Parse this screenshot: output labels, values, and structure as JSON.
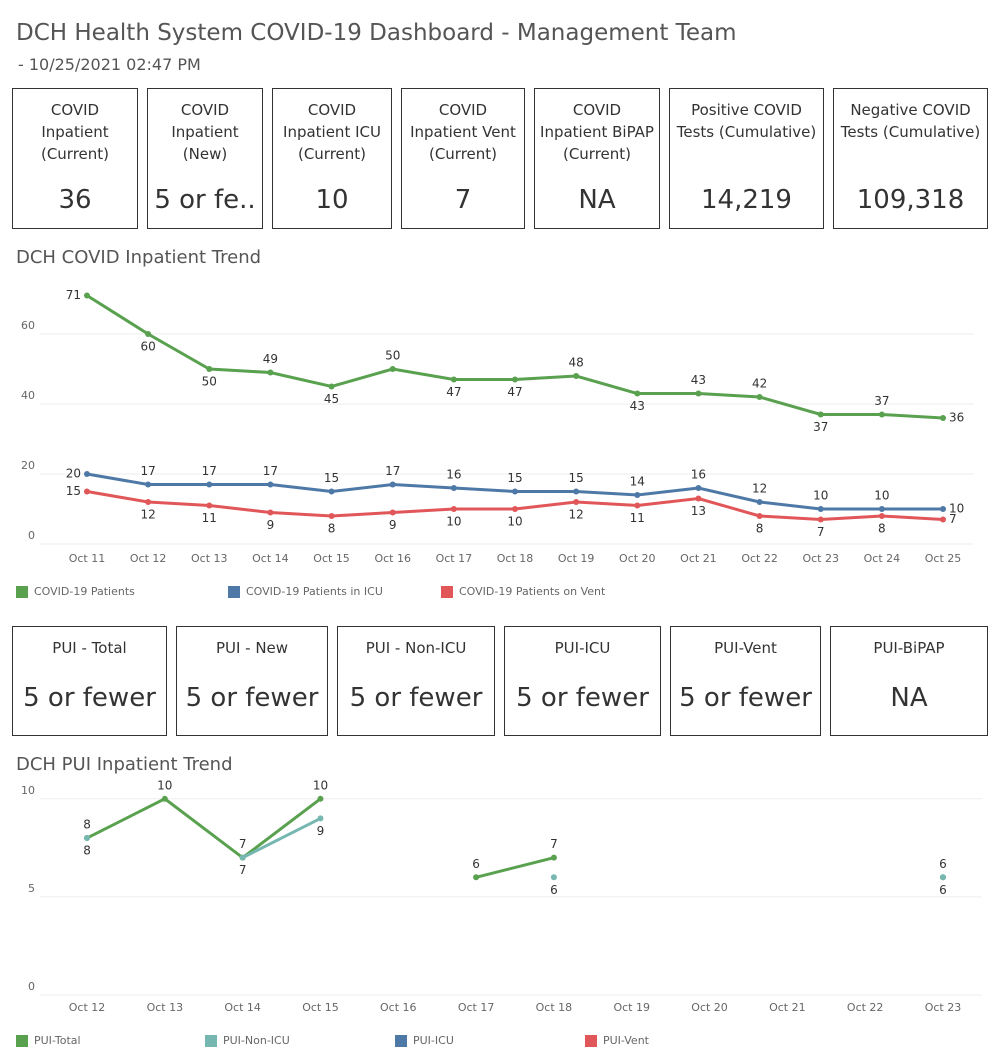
{
  "header": {
    "title": "DCH Health System COVID-19 Dashboard - Management Team",
    "subtitle": "- 10/25/2021 02:47 PM"
  },
  "kpis": [
    {
      "label": "COVID Inpatient (Current)",
      "value": "36"
    },
    {
      "label": "COVID Inpatient (New)",
      "value": "5 or fe.."
    },
    {
      "label": "COVID Inpatient ICU (Current)",
      "value": "10"
    },
    {
      "label": "COVID Inpatient Vent (Current)",
      "value": "7"
    },
    {
      "label": "COVID Inpatient BiPAP (Current)",
      "value": "NA"
    },
    {
      "label": "Positive COVID Tests (Cumulative)",
      "value": "14,219"
    },
    {
      "label": "Negative COVID Tests (Cumulative)",
      "value": "109,318"
    }
  ],
  "pui_kpis": [
    {
      "label": "PUI - Total",
      "value": "5 or fewer"
    },
    {
      "label": "PUI - New",
      "value": "5 or fewer"
    },
    {
      "label": "PUI - Non-ICU",
      "value": "5 or fewer"
    },
    {
      "label": "PUI-ICU",
      "value": "5 or fewer"
    },
    {
      "label": "PUI-Vent",
      "value": "5 or fewer"
    },
    {
      "label": "PUI-BiPAP",
      "value": "NA"
    }
  ],
  "chart_data": [
    {
      "type": "line",
      "title": "DCH COVID Inpatient Trend",
      "categories": [
        "Oct 11",
        "Oct 12",
        "Oct 13",
        "Oct 14",
        "Oct 15",
        "Oct 16",
        "Oct 17",
        "Oct 18",
        "Oct 19",
        "Oct 20",
        "Oct 21",
        "Oct 22",
        "Oct 23",
        "Oct 24",
        "Oct 25"
      ],
      "series": [
        {
          "name": "COVID-19 Patients",
          "color": "#59a14f",
          "values": [
            71,
            60,
            50,
            49,
            45,
            50,
            47,
            47,
            48,
            43,
            43,
            42,
            37,
            37,
            36
          ]
        },
        {
          "name": "COVID-19 Patients in ICU",
          "color": "#4e79a7",
          "values": [
            20,
            17,
            17,
            17,
            15,
            17,
            16,
            15,
            15,
            14,
            16,
            12,
            10,
            10,
            10
          ]
        },
        {
          "name": "COVID-19 Patients on Vent",
          "color": "#e15759",
          "values": [
            15,
            12,
            11,
            9,
            8,
            9,
            10,
            10,
            12,
            11,
            13,
            8,
            7,
            8,
            7
          ]
        }
      ],
      "ylim": [
        0,
        75
      ],
      "yticks": [
        0,
        20,
        40,
        60
      ],
      "grid": true
    },
    {
      "type": "line",
      "title": "DCH PUI Inpatient Trend",
      "categories": [
        "Oct 12",
        "Oct 13",
        "Oct 14",
        "Oct 15",
        "Oct 16",
        "Oct 17",
        "Oct 18",
        "Oct 19",
        "Oct 20",
        "Oct 21",
        "Oct 22",
        "Oct 23"
      ],
      "series": [
        {
          "name": "PUI-Total",
          "color": "#59a14f",
          "values": [
            8,
            10,
            7,
            10,
            null,
            6,
            7,
            null,
            null,
            null,
            null,
            6
          ]
        },
        {
          "name": "PUI-Non-ICU",
          "color": "#76b7b2",
          "values": [
            8,
            null,
            7,
            9,
            null,
            null,
            6,
            null,
            null,
            null,
            null,
            6
          ]
        },
        {
          "name": "PUI-ICU",
          "color": "#4e79a7",
          "values": [
            null,
            null,
            null,
            null,
            null,
            null,
            null,
            null,
            null,
            null,
            null,
            null
          ]
        },
        {
          "name": "PUI-Vent",
          "color": "#e15759",
          "values": [
            null,
            null,
            null,
            null,
            null,
            null,
            null,
            null,
            null,
            null,
            null,
            null
          ]
        }
      ],
      "ylim": [
        0,
        10.5
      ],
      "yticks": [
        0,
        5,
        10
      ],
      "grid": true
    }
  ]
}
